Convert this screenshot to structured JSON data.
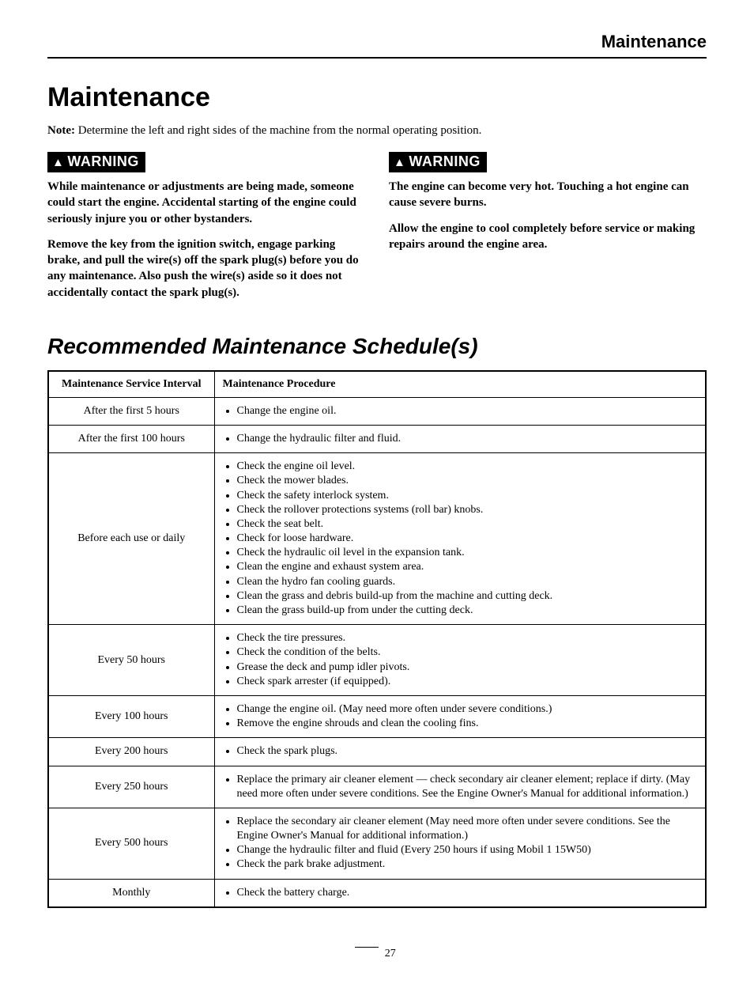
{
  "header": {
    "section": "Maintenance"
  },
  "title": "Maintenance",
  "note": {
    "label": "Note:",
    "text": "Determine the left and right sides of the machine from the normal operating position."
  },
  "warnings": {
    "badge_icon": "▲",
    "badge_text": "WARNING",
    "left": {
      "p1": "While maintenance or adjustments are being made, someone could start the engine. Accidental starting of the engine could seriously injure you or other bystanders.",
      "p2": "Remove the key from the ignition switch, engage parking brake, and pull the wire(s) off the spark plug(s) before you do any maintenance. Also push the wire(s) aside so it does not accidentally contact the spark plug(s)."
    },
    "right": {
      "p1": "The engine can become very hot. Touching a hot engine can cause severe burns.",
      "p2": "Allow the engine to cool completely before service or making repairs around the engine area."
    }
  },
  "schedule": {
    "title": "Recommended Maintenance Schedule(s)",
    "columns": [
      "Maintenance Service Interval",
      "Maintenance Procedure"
    ],
    "rows": [
      {
        "interval": "After the first 5 hours",
        "items": [
          "Change the engine oil."
        ]
      },
      {
        "interval": "After the first 100 hours",
        "items": [
          "Change the hydraulic filter and fluid."
        ]
      },
      {
        "interval": "Before each use or daily",
        "items": [
          "Check the engine oil level.",
          "Check the mower blades.",
          "Check the safety interlock system.",
          "Check the rollover protections systems (roll bar) knobs.",
          "Check the seat belt.",
          "Check for loose hardware.",
          "Check the hydraulic oil level in the expansion tank.",
          "Clean the engine and exhaust system area.",
          "Clean the hydro fan cooling guards.",
          "Clean the grass and debris build-up from the machine and cutting deck.",
          "Clean the grass build-up from under the cutting deck."
        ]
      },
      {
        "interval": "Every 50 hours",
        "items": [
          "Check the tire pressures.",
          "Check the condition of the belts.",
          "Grease the deck and pump idler pivots.",
          "Check spark arrester (if equipped)."
        ]
      },
      {
        "interval": "Every 100 hours",
        "items": [
          "Change the engine oil. (May need more often under severe conditions.)",
          "Remove the engine shrouds and clean the cooling fins."
        ]
      },
      {
        "interval": "Every 200 hours",
        "items": [
          "Check the spark plugs."
        ]
      },
      {
        "interval": "Every 250 hours",
        "items": [
          "Replace the primary air cleaner element — check secondary air cleaner element; replace if dirty. (May need more often under severe conditions. See the Engine Owner's Manual for additional information.)"
        ]
      },
      {
        "interval": "Every 500 hours",
        "items": [
          "Replace the secondary air cleaner element (May need more often under severe conditions. See the Engine Owner's Manual for additional information.)",
          "Change the hydraulic filter and fluid (Every 250 hours if using Mobil 1 15W50)",
          "Check the park brake adjustment."
        ]
      },
      {
        "interval": "Monthly",
        "items": [
          "Check the battery charge."
        ]
      }
    ]
  },
  "page_number": "27",
  "colors": {
    "text": "#000000",
    "background": "#ffffff",
    "warning_badge_bg": "#000000",
    "warning_badge_fg": "#ffffff",
    "rule": "#000000"
  },
  "fonts": {
    "body": "Georgia, 'Times New Roman', serif",
    "headings": "Arial, Helvetica, sans-serif"
  }
}
